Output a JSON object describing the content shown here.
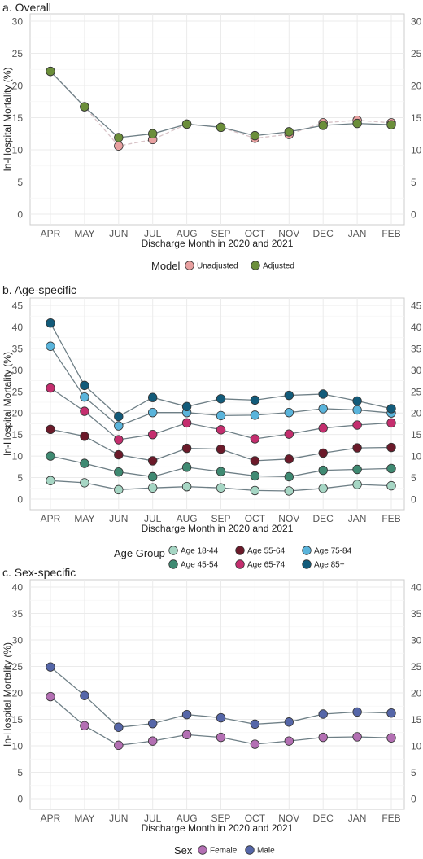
{
  "figure": {
    "x_axis_label": "Discharge Month in 2020 and 2021",
    "y_axis_label": "In-Hospital Mortality (%)"
  },
  "chart_data": [
    {
      "type": "line",
      "title": "a. Overall",
      "xlabel": "Discharge Month in 2020 and 2021",
      "ylabel": "In-Hospital Mortality (%)",
      "categories": [
        "APR",
        "MAY",
        "JUN",
        "JUL",
        "AUG",
        "SEP",
        "OCT",
        "NOV",
        "DEC",
        "JAN",
        "FEB"
      ],
      "ylim": [
        0,
        30
      ],
      "yticks": [
        0,
        5,
        10,
        15,
        20,
        25,
        30
      ],
      "grid": true,
      "legend_title": "Model",
      "legend_position": "bottom",
      "series": [
        {
          "name": "Unadjusted",
          "color": "#e8a0a0",
          "line_style": "dashed",
          "values": [
            22.2,
            16.7,
            10.6,
            11.6,
            14.0,
            13.5,
            11.8,
            12.4,
            14.2,
            14.6,
            14.2
          ]
        },
        {
          "name": "Adjusted",
          "color": "#6b8e3a",
          "line_style": "solid",
          "values": [
            22.2,
            16.7,
            11.9,
            12.5,
            14.0,
            13.5,
            12.2,
            12.8,
            13.8,
            14.1,
            13.9
          ]
        }
      ]
    },
    {
      "type": "line",
      "title": "b. Age-specific",
      "xlabel": "Discharge Month in 2020 and 2021",
      "ylabel": "In-Hospital Mortality (%)",
      "categories": [
        "APR",
        "MAY",
        "JUN",
        "JUL",
        "AUG",
        "SEP",
        "OCT",
        "NOV",
        "DEC",
        "JAN",
        "FEB"
      ],
      "ylim": [
        0,
        45
      ],
      "yticks": [
        0,
        5,
        10,
        15,
        20,
        25,
        30,
        35,
        40,
        45
      ],
      "grid": true,
      "legend_title": "Age Group",
      "legend_position": "bottom",
      "series": [
        {
          "name": "Age 18-44",
          "color": "#a6d6c4",
          "values": [
            4.3,
            3.8,
            2.2,
            2.6,
            2.9,
            2.6,
            2.0,
            1.9,
            2.5,
            3.4,
            3.1
          ]
        },
        {
          "name": "Age 45-54",
          "color": "#3f8a72",
          "values": [
            10.0,
            8.3,
            6.3,
            5.2,
            7.4,
            6.4,
            5.4,
            5.2,
            6.7,
            6.9,
            7.1
          ]
        },
        {
          "name": "Age 55-64",
          "color": "#6b1a2a",
          "values": [
            16.2,
            14.6,
            10.3,
            8.9,
            11.8,
            11.6,
            8.9,
            9.3,
            10.7,
            11.9,
            12.0
          ]
        },
        {
          "name": "Age 65-74",
          "color": "#c42e6e",
          "values": [
            25.8,
            20.4,
            13.8,
            15.0,
            17.7,
            16.1,
            14.0,
            15.1,
            16.5,
            17.2,
            17.7
          ]
        },
        {
          "name": "Age 75-84",
          "color": "#5ab4db",
          "values": [
            35.5,
            23.7,
            17.0,
            20.1,
            20.1,
            19.4,
            19.5,
            20.1,
            21.0,
            20.7,
            20.0
          ]
        },
        {
          "name": "Age 85+",
          "color": "#125b7a",
          "values": [
            40.9,
            26.4,
            19.2,
            23.6,
            21.5,
            23.3,
            23.0,
            24.1,
            24.4,
            22.8,
            21.0
          ]
        }
      ]
    },
    {
      "type": "line",
      "title": "c. Sex-specific",
      "xlabel": "Discharge Month in 2020 and 2021",
      "ylabel": "In-Hospital Mortality (%)",
      "categories": [
        "APR",
        "MAY",
        "JUN",
        "JUL",
        "AUG",
        "SEP",
        "OCT",
        "NOV",
        "DEC",
        "JAN",
        "FEB"
      ],
      "ylim": [
        0,
        40
      ],
      "yticks": [
        0,
        5,
        10,
        15,
        20,
        25,
        30,
        35,
        40
      ],
      "grid": true,
      "legend_title": "Sex",
      "legend_position": "bottom",
      "series": [
        {
          "name": "Female",
          "color": "#b36fb3",
          "values": [
            19.3,
            13.8,
            10.1,
            10.9,
            12.1,
            11.6,
            10.3,
            10.9,
            11.6,
            11.7,
            11.5
          ]
        },
        {
          "name": "Male",
          "color": "#5566a8",
          "values": [
            24.9,
            19.5,
            13.5,
            14.2,
            15.9,
            15.3,
            14.1,
            14.5,
            16.0,
            16.4,
            16.2
          ]
        }
      ]
    }
  ]
}
